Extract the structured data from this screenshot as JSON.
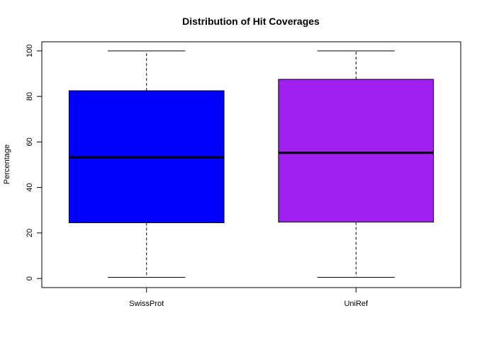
{
  "chart_data": {
    "type": "boxplot",
    "title": "Distribution of Hit Coverages",
    "xlabel": "",
    "ylabel": "Percentage",
    "ylim": [
      -4,
      104
    ],
    "yticks": [
      0,
      20,
      40,
      60,
      80,
      100
    ],
    "categories": [
      "SwissProt",
      "UniRef"
    ],
    "boxes": [
      {
        "category": "SwissProt",
        "min": 0.5,
        "q1": 24.5,
        "median": 53.2,
        "q3": 82.5,
        "max": 100,
        "color": "#0000FF"
      },
      {
        "category": "UniRef",
        "min": 0.5,
        "q1": 24.8,
        "median": 55.2,
        "q3": 87.5,
        "max": 100,
        "color": "#A020F0"
      }
    ],
    "grid": false,
    "legend": "none"
  }
}
